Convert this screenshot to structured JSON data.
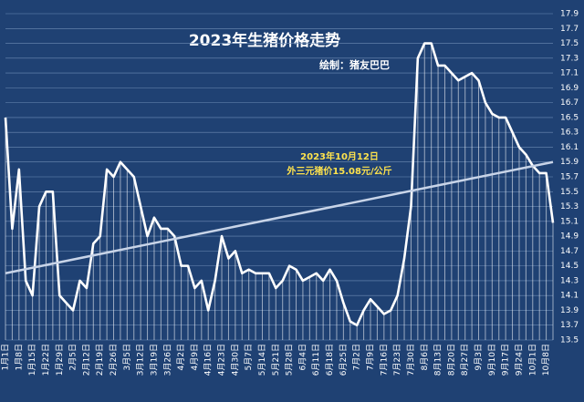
{
  "chart_data": {
    "type": "line",
    "title": "2023年生猪价格走势",
    "subtitle": "绘制：猪友巴巴",
    "annotation": [
      "2023年10月12日",
      "外三元猪价15.08元/公斤"
    ],
    "categories": [
      "1月1日",
      null,
      "1月8日",
      null,
      "1月15日",
      null,
      "1月22日",
      null,
      "1月29日",
      null,
      "2月5日",
      null,
      "2月12日",
      null,
      "2月19日",
      null,
      "2月26日",
      null,
      "3月5日",
      null,
      "3月12日",
      null,
      "3月19日",
      null,
      "3月26日",
      null,
      "4月2日",
      null,
      "4月9日",
      null,
      "4月16日",
      null,
      "4月23日",
      null,
      "4月30日",
      null,
      "5月7日",
      null,
      "5月14日",
      null,
      "5月21日",
      null,
      "5月28日",
      null,
      "6月4日",
      null,
      "6月11日",
      null,
      "6月18日",
      null,
      "6月25日",
      null,
      "7月2日",
      null,
      "7月9日",
      null,
      "7月16日",
      null,
      "7月23日",
      null,
      "7月30日",
      null,
      "8月6日",
      null,
      "8月13日",
      null,
      "8月20日",
      null,
      "8月27日",
      null,
      "9月3日",
      null,
      "9月10日",
      null,
      "9月17日",
      null,
      "9月24日",
      null,
      "10月1日",
      null,
      "10月8日",
      null
    ],
    "series": [
      {
        "name": "外三元猪价",
        "color": "#ffffff",
        "values": [
          16.5,
          15.0,
          15.8,
          14.3,
          14.1,
          15.3,
          15.5,
          15.5,
          14.1,
          14.0,
          13.9,
          14.3,
          14.2,
          14.8,
          14.9,
          15.8,
          15.7,
          15.9,
          15.8,
          15.7,
          15.3,
          14.9,
          15.15,
          15.0,
          15.0,
          14.9,
          14.5,
          14.5,
          14.2,
          14.3,
          13.9,
          14.3,
          14.9,
          14.6,
          14.7,
          14.4,
          14.45,
          14.4,
          14.4,
          14.4,
          14.2,
          14.3,
          14.5,
          14.45,
          14.3,
          14.35,
          14.4,
          14.3,
          14.45,
          14.3,
          14.0,
          13.75,
          13.7,
          13.9,
          14.05,
          13.95,
          13.85,
          13.9,
          14.1,
          14.6,
          15.3,
          17.3,
          17.5,
          17.5,
          17.2,
          17.2,
          17.1,
          17.0,
          17.05,
          17.1,
          17.0,
          16.7,
          16.55,
          16.5,
          16.5,
          16.3,
          16.1,
          16.0,
          15.85,
          15.75,
          15.75,
          15.08
        ]
      }
    ],
    "trend": {
      "color": "#c8d4e8",
      "values": [
        14.4,
        15.9
      ]
    },
    "ylim": [
      13.5,
      17.9
    ],
    "yticks": [
      13.5,
      13.7,
      13.9,
      14.1,
      14.3,
      14.5,
      14.7,
      14.9,
      15.1,
      15.3,
      15.5,
      15.7,
      15.9,
      16.1,
      16.3,
      16.5,
      16.7,
      16.9,
      17.1,
      17.3,
      17.5,
      17.7,
      17.9
    ],
    "grid": true
  }
}
